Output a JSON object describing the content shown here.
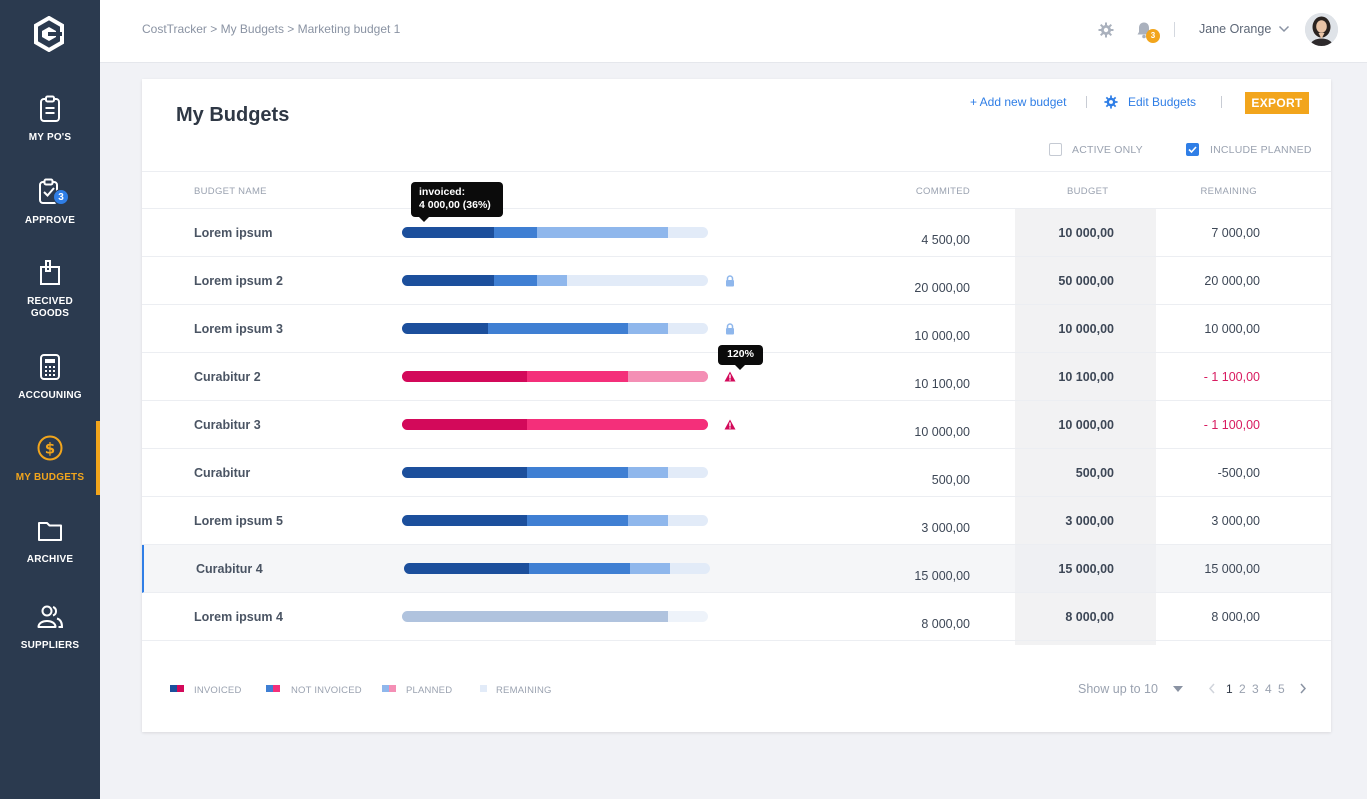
{
  "sidebar": {
    "items": [
      {
        "label": "MY PO'S",
        "icon": "clipboard-icon",
        "active": false
      },
      {
        "label": "APPROVE",
        "icon": "clipboard-check-icon",
        "badge": "3",
        "active": false
      },
      {
        "label": "RECIVED GOODS",
        "icon": "package-icon",
        "active": false
      },
      {
        "label": "ACCOUNING",
        "icon": "calculator-icon",
        "active": false
      },
      {
        "label": "MY BUDGETS",
        "icon": "dollar-circle-icon",
        "active": true
      },
      {
        "label": "ARCHIVE",
        "icon": "folder-icon",
        "active": false
      },
      {
        "label": "SUPPLIERS",
        "icon": "users-icon",
        "active": false
      }
    ]
  },
  "header": {
    "breadcrumb": "CostTracker > My Budgets > Marketing budget 1",
    "notifications": "3",
    "user_name": "Jane Orange"
  },
  "main": {
    "title": "My Budgets",
    "add_budget": "+ Add new budget",
    "edit_budgets": "Edit Budgets",
    "export": "EXPORT",
    "filters": [
      {
        "label": "ACTIVE ONLY",
        "checked": false
      },
      {
        "label": "INCLUDE PLANNED",
        "checked": true
      }
    ],
    "columns": [
      "BUDGET NAME",
      "COMMITED",
      "BUDGET",
      "REMAINING"
    ],
    "rows": [
      {
        "name": "Lorem ipsum",
        "commited": "4 500,00",
        "budget": "10 000,00",
        "remaining": "7 000,00",
        "status": "normal",
        "progress": {
          "invoiced": 0.3,
          "not_invoiced": 0.14,
          "planned": 0.43
        }
      },
      {
        "name": "Lorem ipsum 2",
        "commited": "20 000,00",
        "budget": "50 000,00",
        "remaining": "20 000,00",
        "status": "normal",
        "locked": true,
        "progress": {
          "invoiced": 0.3,
          "not_invoiced": 0.14,
          "planned": 0.1
        }
      },
      {
        "name": "Lorem ipsum 3",
        "commited": "10 000,00",
        "budget": "10 000,00",
        "remaining": "10 000,00",
        "status": "normal",
        "locked": true,
        "progress": {
          "invoiced": 0.28,
          "not_invoiced": 0.46,
          "planned": 0.13
        }
      },
      {
        "name": "Curabitur 2",
        "commited": "10 100,00",
        "budget": "10 100,00",
        "remaining": "- 1 100,00",
        "status": "over",
        "warning": true,
        "progress": {
          "invoiced": 0.41,
          "not_invoiced": 0.33,
          "planned": 0.26
        }
      },
      {
        "name": "Curabitur 3",
        "commited": "10 000,00",
        "budget": "10 000,00",
        "remaining": "- 1 100,00",
        "status": "over",
        "warning": true,
        "progress": {
          "invoiced": 0.41,
          "not_invoiced": 0.59,
          "planned": 0
        }
      },
      {
        "name": "Curabitur",
        "commited": "500,00",
        "budget": "500,00",
        "remaining": "-500,00",
        "status": "normal",
        "progress": {
          "invoiced": 0.41,
          "not_invoiced": 0.33,
          "planned": 0.13
        }
      },
      {
        "name": "Lorem ipsum 5",
        "commited": "3 000,00",
        "budget": "3 000,00",
        "remaining": "3 000,00",
        "status": "normal",
        "progress": {
          "invoiced": 0.41,
          "not_invoiced": 0.33,
          "planned": 0.13
        }
      },
      {
        "name": "Curabitur 4",
        "commited": "15 000,00",
        "budget": "15 000,00",
        "remaining": "15 000,00",
        "status": "normal",
        "selected": true,
        "progress": {
          "invoiced": 0.41,
          "not_invoiced": 0.33,
          "planned": 0.13
        }
      },
      {
        "name": "Lorem ipsum 4",
        "commited": "8 000,00",
        "budget": "8 000,00",
        "remaining": "8 000,00",
        "status": "inactive",
        "progress": {
          "invoiced": 0,
          "not_invoiced": 0,
          "planned": 0.87
        }
      }
    ],
    "tooltip_invoiced": {
      "line1": "invoiced:",
      "line2": "4 000,00 (36%)"
    },
    "tooltip_over": "120%",
    "legend": [
      "INVOICED",
      "NOT INVOICED",
      "PLANNED",
      "REMAINING"
    ],
    "show_up": "Show up to 10",
    "pages": [
      "1",
      "2",
      "3",
      "4",
      "5"
    ],
    "current_page": "1"
  },
  "colors": {
    "sidebar_bg": "#2b3a4f",
    "accent": "#f2a51c",
    "link": "#2f7ee6",
    "invoiced": "#1c4f9c",
    "not_invoiced": "#3f7fd3",
    "planned": "#8fb7ec",
    "remaining": "#e2ebf8",
    "over_invoiced": "#d3095a",
    "over_not_invoiced": "#f42f7a",
    "over_planned": "#f48fb5",
    "negative": "#d81b60"
  }
}
